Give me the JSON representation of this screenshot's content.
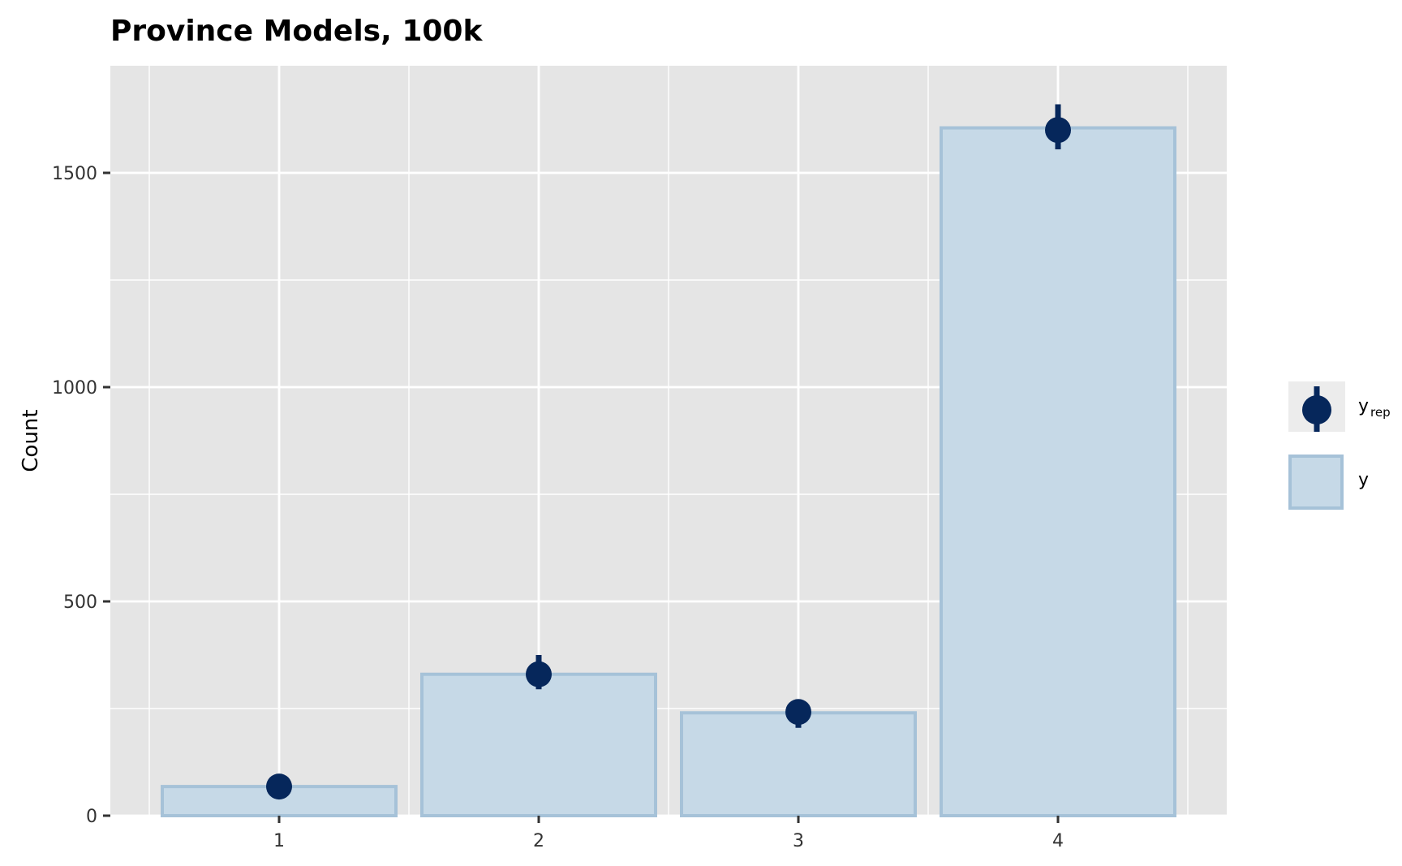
{
  "chart_data": {
    "type": "bar",
    "title": "Province Models, 100k",
    "xlabel": "",
    "ylabel": "Count",
    "categories": [
      "1",
      "2",
      "3",
      "4"
    ],
    "ylim": [
      0,
      1750
    ],
    "yticks": [
      0,
      500,
      1000,
      1500
    ],
    "grid": true,
    "legend_position": "right",
    "series": [
      {
        "name": "y",
        "type": "bar",
        "values": [
          68,
          330,
          240,
          1605
        ]
      },
      {
        "name": "yrep",
        "type": "pointrange",
        "values": [
          68,
          330,
          242,
          1600
        ],
        "lower": [
          55,
          295,
          205,
          1555
        ],
        "upper": [
          80,
          375,
          270,
          1660
        ]
      }
    ],
    "legend": [
      {
        "key": "yrep",
        "label_main": "y",
        "label_sub": "rep"
      },
      {
        "key": "y",
        "label_main": "y",
        "label_sub": ""
      }
    ],
    "colors": {
      "panel_bg": "#e5e5e5",
      "grid": "#ffffff",
      "bar_fill": "#c6d9e7",
      "bar_stroke": "#a6c2d8",
      "point": "#06275b",
      "legend_key_bg": "#ececec"
    }
  }
}
